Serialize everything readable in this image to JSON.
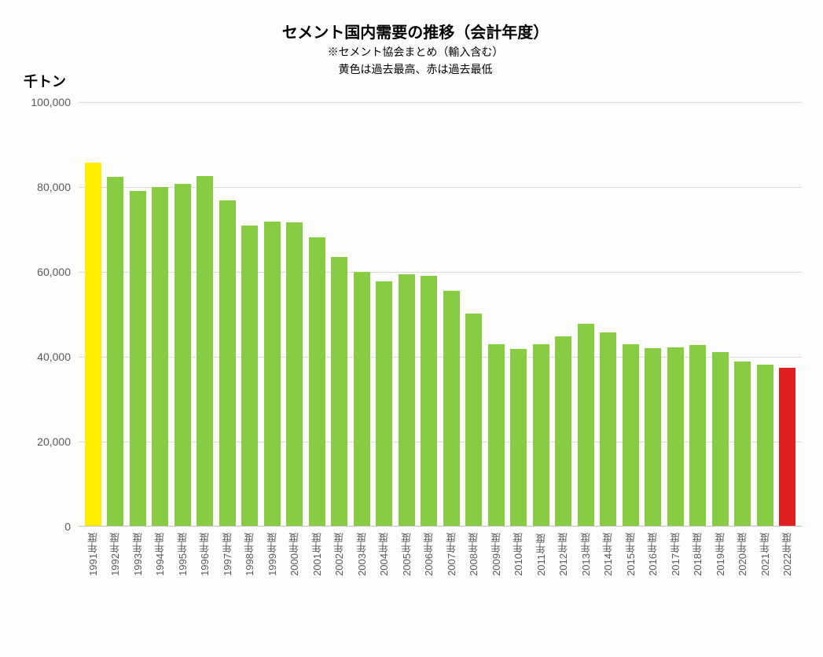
{
  "chart": {
    "type": "bar",
    "title": "セメント国内需要の推移（会計年度）",
    "subtitle1": "※セメント協会まとめ（輸入含む）",
    "subtitle2": "黄色は過去最高、赤は過去最低",
    "y_axis_label": "千トン",
    "title_fontsize": 20,
    "subtitle_fontsize": 14,
    "y_axis_label_fontsize": 18,
    "tick_fontsize": 14,
    "x_label_fontsize": 13,
    "background_color": "#fdfdfb",
    "grid_color": "#d9d9d9",
    "axis_color": "#bfbfbf",
    "text_color": "#000000",
    "tick_text_color": "#595959",
    "ylim": [
      0,
      100000
    ],
    "ytick_step": 20000,
    "y_ticks": [
      {
        "value": 0,
        "label": "0"
      },
      {
        "value": 20000,
        "label": "20,000"
      },
      {
        "value": 40000,
        "label": "40,000"
      },
      {
        "value": 60000,
        "label": "60,000"
      },
      {
        "value": 80000,
        "label": "80,000"
      },
      {
        "value": 100000,
        "label": "100,000"
      }
    ],
    "bar_colors": {
      "normal": "#88cc44",
      "highest": "#ffee00",
      "lowest": "#e02020"
    },
    "bar_width_ratio": 0.74,
    "data": [
      {
        "label": "1991年度",
        "value": 85500,
        "kind": "highest"
      },
      {
        "label": "1992年度",
        "value": 82200,
        "kind": "normal"
      },
      {
        "label": "1993年度",
        "value": 78800,
        "kind": "normal"
      },
      {
        "label": "1994年度",
        "value": 79900,
        "kind": "normal"
      },
      {
        "label": "1995年度",
        "value": 80500,
        "kind": "normal"
      },
      {
        "label": "1996年度",
        "value": 82500,
        "kind": "normal"
      },
      {
        "label": "1997年度",
        "value": 76700,
        "kind": "normal"
      },
      {
        "label": "1998年度",
        "value": 70800,
        "kind": "normal"
      },
      {
        "label": "1999年度",
        "value": 71600,
        "kind": "normal"
      },
      {
        "label": "2000年度",
        "value": 71400,
        "kind": "normal"
      },
      {
        "label": "2001年度",
        "value": 67900,
        "kind": "normal"
      },
      {
        "label": "2002年度",
        "value": 63400,
        "kind": "normal"
      },
      {
        "label": "2003年度",
        "value": 59800,
        "kind": "normal"
      },
      {
        "label": "2004年度",
        "value": 57600,
        "kind": "normal"
      },
      {
        "label": "2005年度",
        "value": 59200,
        "kind": "normal"
      },
      {
        "label": "2006年度",
        "value": 58900,
        "kind": "normal"
      },
      {
        "label": "2007年度",
        "value": 55400,
        "kind": "normal"
      },
      {
        "label": "2008年度",
        "value": 50000,
        "kind": "normal"
      },
      {
        "label": "2009年度",
        "value": 42800,
        "kind": "normal"
      },
      {
        "label": "2010年度",
        "value": 41600,
        "kind": "normal"
      },
      {
        "label": "2011年度",
        "value": 42700,
        "kind": "normal"
      },
      {
        "label": "2012年度",
        "value": 44600,
        "kind": "normal"
      },
      {
        "label": "2013年度",
        "value": 47600,
        "kind": "normal"
      },
      {
        "label": "2014年度",
        "value": 45500,
        "kind": "normal"
      },
      {
        "label": "2015年度",
        "value": 42700,
        "kind": "normal"
      },
      {
        "label": "2016年度",
        "value": 41800,
        "kind": "normal"
      },
      {
        "label": "2017年度",
        "value": 42000,
        "kind": "normal"
      },
      {
        "label": "2018年度",
        "value": 42600,
        "kind": "normal"
      },
      {
        "label": "2019年度",
        "value": 41000,
        "kind": "normal"
      },
      {
        "label": "2020年度",
        "value": 38700,
        "kind": "normal"
      },
      {
        "label": "2021年度",
        "value": 38000,
        "kind": "normal"
      },
      {
        "label": "2022年度",
        "value": 37300,
        "kind": "lowest"
      }
    ]
  }
}
